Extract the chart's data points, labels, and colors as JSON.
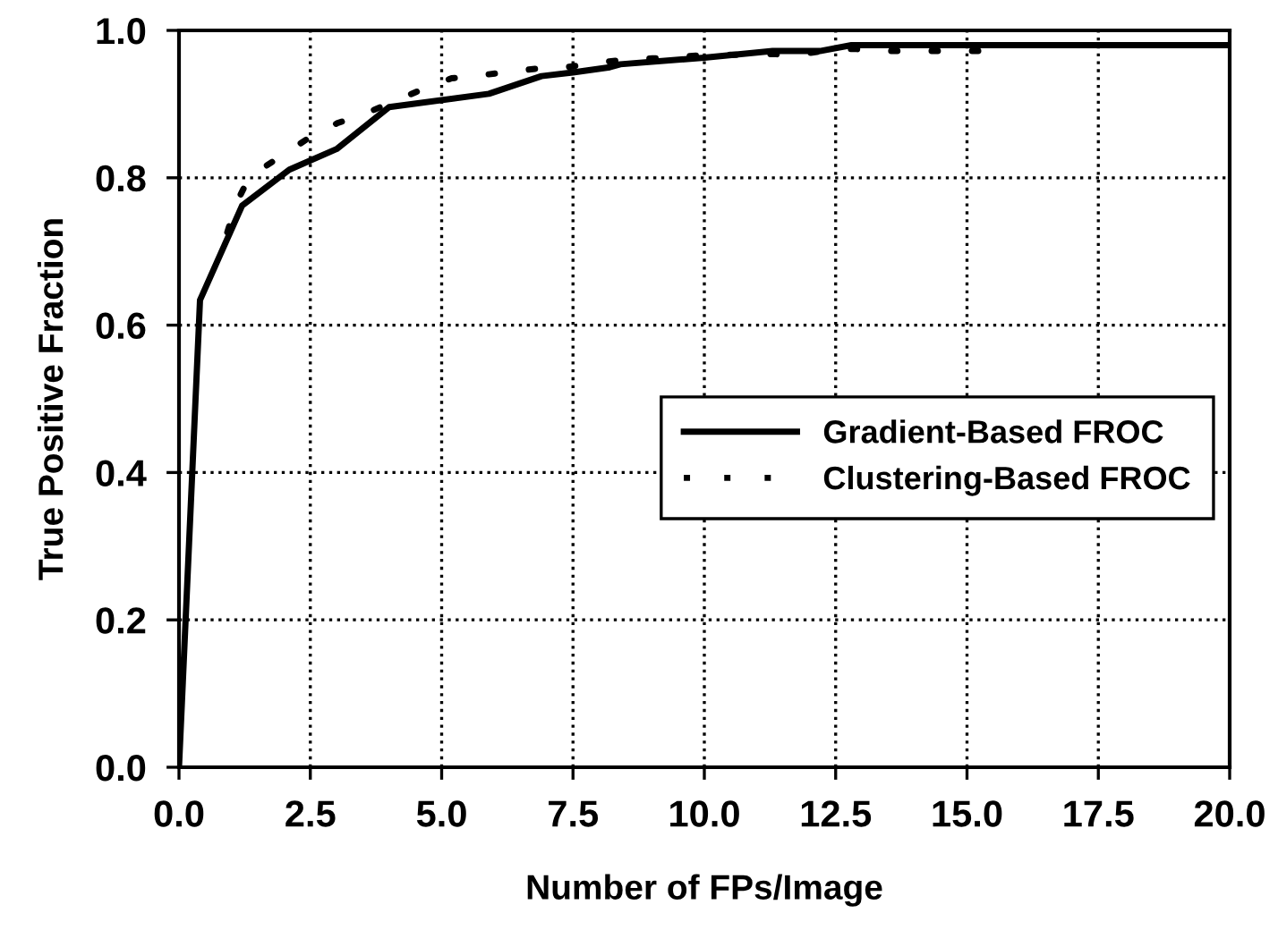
{
  "chart_data": {
    "type": "line",
    "xlabel": "Number of FPs/Image",
    "ylabel": "True Positive Fraction",
    "xlim": [
      0,
      20
    ],
    "ylim": [
      0,
      1
    ],
    "xticks": [
      {
        "value": 0,
        "label": "0.0"
      },
      2.5,
      {
        "value": 5,
        "label": "5.0"
      },
      7.5,
      {
        "value": 10,
        "label": "10.0"
      },
      12.5,
      {
        "value": 15,
        "label": "15.0"
      },
      17.5,
      {
        "value": 20,
        "label": "20.0"
      }
    ],
    "yticks": [
      {
        "value": 0,
        "label": "0.0"
      },
      0.2,
      0.4,
      0.6,
      0.8,
      {
        "value": 1,
        "label": "1.0"
      }
    ],
    "grid": true,
    "legend": "right",
    "marker": "none",
    "series": [
      {
        "name": "Gradient-Based FROC",
        "color": "#000000",
        "line_style": "solid",
        "x": [
          0,
          0.4,
          1.2,
          2.1,
          3.0,
          4.0,
          5.9,
          6.9,
          7.5,
          8.2,
          8.4,
          10.0,
          11.3,
          12.2,
          12.8,
          20
        ],
        "values": [
          0,
          0.634,
          0.762,
          0.811,
          0.839,
          0.896,
          0.914,
          0.938,
          0.943,
          0.95,
          0.954,
          0.963,
          0.972,
          0.972,
          0.98,
          0.98
        ]
      },
      {
        "name": "Clustering-Based FROC",
        "color": "#000000",
        "line_style": "dotted",
        "x": [
          0.92,
          1.08,
          1.34,
          1.91,
          2.45,
          3.01,
          3.54,
          4.63,
          5.19,
          5.74,
          6.28,
          6.81,
          7.38,
          7.93,
          8.46,
          9.01,
          9.54,
          10.05,
          10.62,
          11.18,
          11.75,
          12.27,
          12.84,
          13.4,
          13.97,
          14.5,
          15.05,
          15.56
        ],
        "values": [
          0.726,
          0.764,
          0.801,
          0.828,
          0.853,
          0.874,
          0.887,
          0.92,
          0.935,
          0.939,
          0.944,
          0.948,
          0.95,
          0.956,
          0.96,
          0.962,
          0.964,
          0.967,
          0.967,
          0.968,
          0.967,
          0.972,
          0.975,
          0.972,
          0.972,
          0.972,
          0.972,
          0.972
        ]
      }
    ]
  }
}
